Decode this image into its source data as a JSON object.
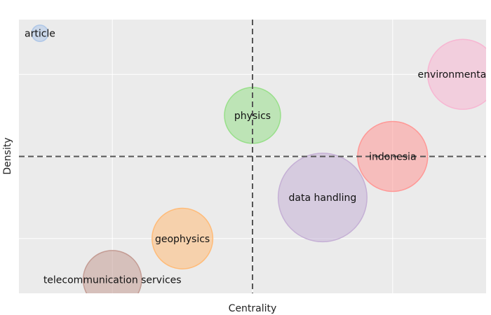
{
  "chart_data": {
    "type": "scatter",
    "title": "",
    "xlabel": "Centrality",
    "ylabel": "Density",
    "xlim": [
      0,
      10
    ],
    "ylim": [
      0,
      10
    ],
    "grid": true,
    "quadrant_lines": {
      "x": 5,
      "y": 5
    },
    "points": [
      {
        "label": "article",
        "x": 0.45,
        "y": 9.5,
        "size": 0.35,
        "color": "#aec7e8"
      },
      {
        "label": "environmental ma",
        "x": 9.5,
        "y": 8.0,
        "size": 1.5,
        "color": "#f7b6d2"
      },
      {
        "label": "physics",
        "x": 5.0,
        "y": 6.5,
        "size": 1.2,
        "color": "#98df8a"
      },
      {
        "label": "indonesia",
        "x": 8.0,
        "y": 5.0,
        "size": 1.5,
        "color": "#ff9896"
      },
      {
        "label": "data handling",
        "x": 6.5,
        "y": 3.5,
        "size": 1.9,
        "color": "#c5b0d5"
      },
      {
        "label": "geophysics",
        "x": 3.5,
        "y": 2.0,
        "size": 1.3,
        "color": "#ffbb78"
      },
      {
        "label": "telecommunication services",
        "x": 2.0,
        "y": 0.5,
        "size": 1.25,
        "color": "#c49c94"
      }
    ]
  }
}
